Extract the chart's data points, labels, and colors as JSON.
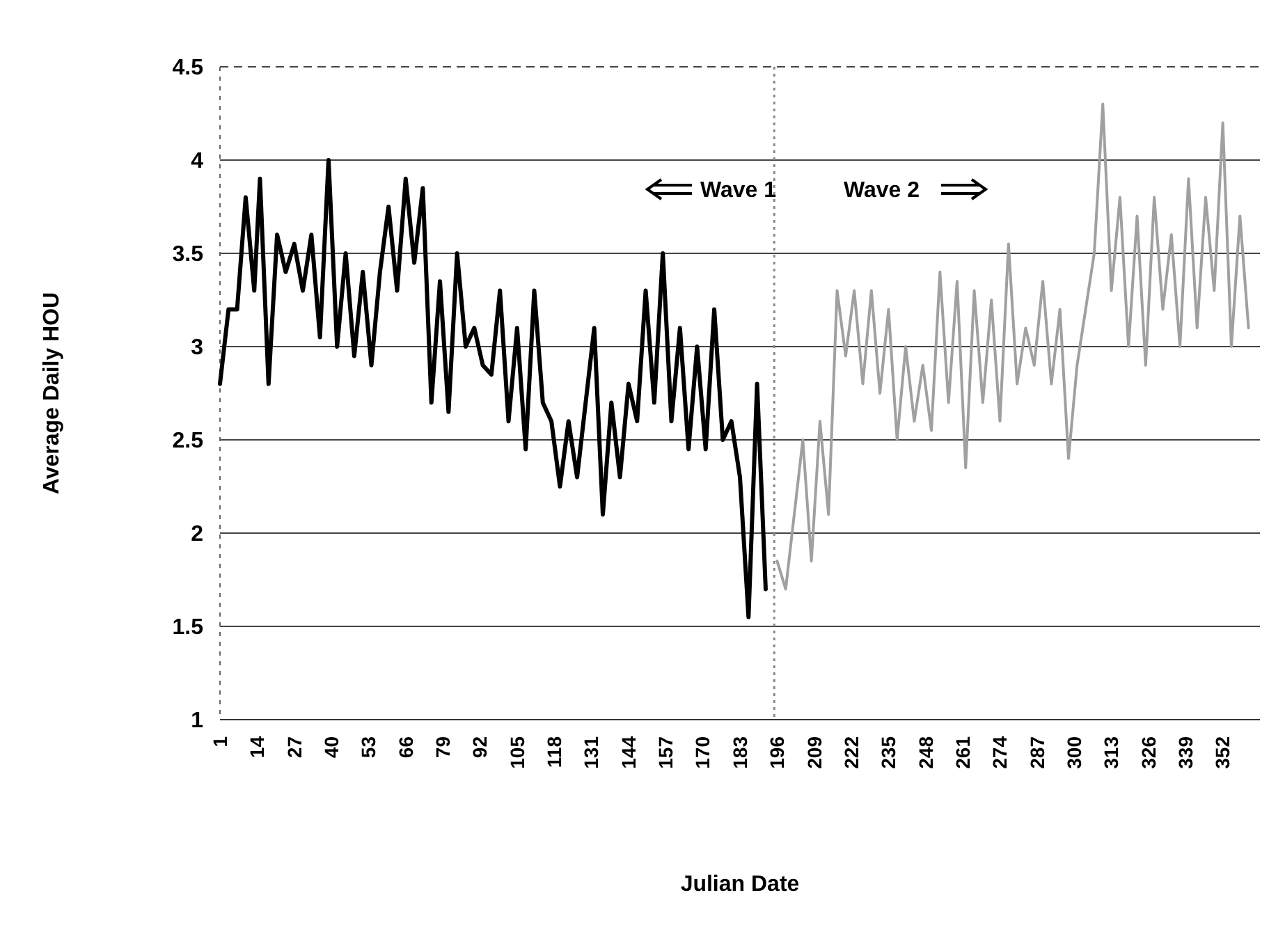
{
  "chart_data": {
    "type": "line",
    "xlabel": "Julian Date",
    "ylabel": "Average Daily HOU",
    "xlim": [
      1,
      365
    ],
    "xticks": [
      1,
      14,
      27,
      40,
      53,
      66,
      79,
      92,
      105,
      118,
      131,
      144,
      157,
      170,
      183,
      196,
      209,
      222,
      235,
      248,
      261,
      274,
      287,
      300,
      313,
      326,
      339,
      352
    ],
    "ylim": [
      1,
      4.5
    ],
    "yticks": [
      1,
      1.5,
      2,
      2.5,
      3,
      3.5,
      4,
      4.5
    ],
    "grid": "y",
    "marker": "none",
    "line_style": "solid",
    "annotations": [
      "Wave 1",
      "Wave 2"
    ],
    "ref_lines": [
      {
        "axis": "x",
        "value": 195,
        "label": null,
        "color": "#888888",
        "line_style": "dotted"
      }
    ],
    "series": [
      {
        "color": "#000000",
        "x": [
          1,
          4,
          7,
          10,
          13,
          15,
          18,
          21,
          24,
          27,
          30,
          33,
          36,
          39,
          42,
          45,
          48,
          51,
          54,
          57,
          60,
          63,
          66,
          69,
          72,
          75,
          78,
          81,
          84,
          87,
          90,
          93,
          96,
          99,
          102,
          105,
          108,
          111,
          114,
          117,
          120,
          123,
          126,
          129,
          132,
          135,
          138,
          141,
          144,
          147,
          150,
          153,
          156,
          159,
          162,
          165,
          168,
          171,
          174,
          177,
          180,
          183,
          186,
          189,
          192
        ],
        "values": [
          2.8,
          3.2,
          3.2,
          3.8,
          3.3,
          3.9,
          2.8,
          3.6,
          3.4,
          3.55,
          3.3,
          3.6,
          3.05,
          4.0,
          3.0,
          3.5,
          2.95,
          3.4,
          2.9,
          3.4,
          3.75,
          3.3,
          3.9,
          3.45,
          3.85,
          2.7,
          3.35,
          2.65,
          3.5,
          3.0,
          3.1,
          2.9,
          2.85,
          3.3,
          2.6,
          3.1,
          2.45,
          3.3,
          2.7,
          2.6,
          2.25,
          2.6,
          2.3,
          2.7,
          3.1,
          2.1,
          2.7,
          2.3,
          2.8,
          2.6,
          3.3,
          2.7,
          3.5,
          2.6,
          3.1,
          2.45,
          3.0,
          2.45,
          3.2,
          2.5,
          2.6,
          2.3,
          1.55,
          2.8,
          1.7
        ]
      },
      {
        "color": "#a0a0a0",
        "x": [
          196,
          199,
          202,
          205,
          208,
          211,
          214,
          217,
          220,
          223,
          226,
          229,
          232,
          235,
          238,
          241,
          244,
          247,
          250,
          253,
          256,
          259,
          262,
          265,
          268,
          271,
          274,
          277,
          280,
          283,
          286,
          289,
          292,
          295,
          298,
          301,
          304,
          307,
          310,
          313,
          316,
          319,
          322,
          325,
          328,
          331,
          334,
          337,
          340,
          343,
          346,
          349,
          352,
          355,
          358,
          361
        ],
        "values": [
          1.85,
          1.7,
          2.1,
          2.5,
          1.85,
          2.6,
          2.1,
          3.3,
          2.95,
          3.3,
          2.8,
          3.3,
          2.75,
          3.2,
          2.5,
          3.0,
          2.6,
          2.9,
          2.55,
          3.4,
          2.7,
          3.35,
          2.35,
          3.3,
          2.7,
          3.25,
          2.6,
          3.55,
          2.8,
          3.1,
          2.9,
          3.35,
          2.8,
          3.2,
          2.4,
          2.9,
          3.2,
          3.5,
          4.3,
          3.3,
          3.8,
          3.0,
          3.7,
          2.9,
          3.8,
          3.2,
          3.6,
          3.0,
          3.9,
          3.1,
          3.8,
          3.3,
          4.2,
          3.0,
          3.7,
          3.1
        ]
      }
    ]
  }
}
